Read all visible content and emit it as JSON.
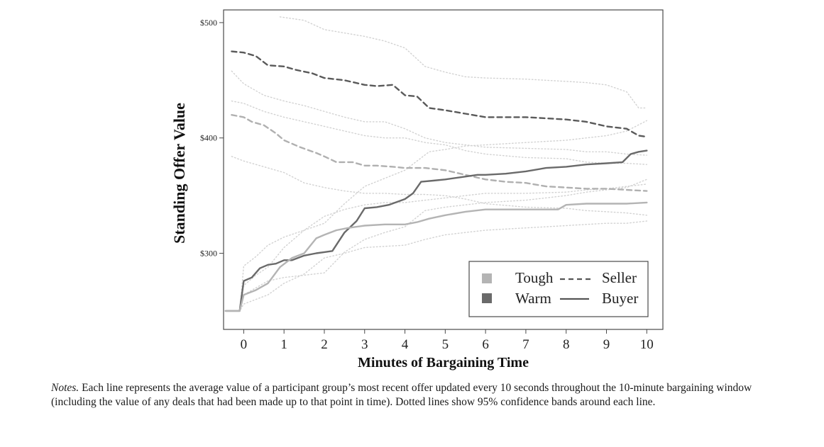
{
  "chart_data": {
    "type": "line",
    "xlabel": "Minutes of Bargaining Time",
    "ylabel": "Standing Offer Value",
    "xlim": [
      -0.5,
      10.4
    ],
    "ylim": [
      234,
      511
    ],
    "x_ticks": [
      0,
      1,
      2,
      3,
      4,
      5,
      6,
      7,
      8,
      9,
      10
    ],
    "x_tick_labels": [
      "0",
      "1",
      "2",
      "3",
      "4",
      "5",
      "6",
      "7",
      "8",
      "9",
      "10"
    ],
    "y_ticks": [
      300,
      400,
      500
    ],
    "y_tick_labels": [
      "$300",
      "$400",
      "$500"
    ],
    "legend": {
      "position": "bottom-right",
      "group_labels": [
        "Tough",
        "Warm"
      ],
      "role_labels": [
        "Seller",
        "Buyer"
      ]
    },
    "series": [
      {
        "name": "Warm Seller",
        "group": "Warm",
        "role": "Seller",
        "color": "#5a5a5a",
        "style": "dashed",
        "x": [
          -0.3,
          0,
          0.3,
          0.6,
          1,
          1.3,
          1.7,
          2,
          2.5,
          3,
          3.3,
          3.7,
          4,
          4.3,
          4.6,
          5,
          5.5,
          6,
          7,
          7.5,
          8,
          8.5,
          9,
          9.5,
          9.8,
          10
        ],
        "y": [
          475,
          474,
          471,
          463,
          462,
          459,
          456,
          452,
          450,
          446,
          445,
          446,
          437,
          436,
          426,
          424,
          421,
          418,
          418,
          417,
          416,
          414,
          410,
          408,
          402,
          401
        ]
      },
      {
        "name": "Tough Seller",
        "group": "Tough",
        "role": "Seller",
        "color": "#b0b0b0",
        "style": "dashed",
        "x": [
          -0.3,
          0,
          0.2,
          0.5,
          0.8,
          1,
          1.4,
          1.8,
          2,
          2.3,
          2.7,
          3,
          3.3,
          3.7,
          4,
          4.5,
          5,
          5.5,
          6,
          6.5,
          7,
          7.5,
          8,
          8.5,
          9,
          9.5,
          10
        ],
        "y": [
          420,
          418,
          414,
          411,
          404,
          398,
          392,
          387,
          384,
          379,
          379,
          376,
          376,
          375,
          374,
          374,
          372,
          368,
          364,
          362,
          361,
          358,
          357,
          356,
          356,
          355,
          354
        ]
      },
      {
        "name": "Warm Buyer",
        "group": "Warm",
        "role": "Buyer",
        "color": "#6a6a6a",
        "style": "solid",
        "x": [
          -0.45,
          -0.1,
          0,
          0.2,
          0.4,
          0.6,
          0.8,
          1,
          1.2,
          1.5,
          1.8,
          2,
          2.2,
          2.5,
          2.8,
          3,
          3.3,
          3.6,
          4,
          4.2,
          4.4,
          4.7,
          5,
          5.4,
          5.8,
          6,
          6.5,
          7,
          7.5,
          8,
          8.5,
          9,
          9.4,
          9.6,
          9.8,
          10
        ],
        "y": [
          250,
          250,
          276,
          279,
          287,
          290,
          291,
          294,
          294,
          298,
          300,
          301,
          302,
          318,
          328,
          339,
          340,
          342,
          347,
          352,
          362,
          363,
          364,
          366,
          368,
          368,
          369,
          371,
          374,
          375,
          377,
          378,
          379,
          386,
          388,
          389
        ]
      },
      {
        "name": "Tough Buyer",
        "group": "Tough",
        "role": "Buyer",
        "color": "#b4b4b4",
        "style": "solid",
        "x": [
          -0.45,
          -0.1,
          0,
          0.3,
          0.6,
          0.9,
          1.2,
          1.5,
          1.8,
          2,
          2.3,
          2.6,
          3,
          3.5,
          4,
          4.3,
          4.6,
          5,
          5.5,
          6,
          6.5,
          7,
          7.5,
          7.8,
          8,
          8.5,
          9,
          9.5,
          10
        ],
        "y": [
          250,
          250,
          264,
          268,
          274,
          288,
          296,
          300,
          313,
          316,
          320,
          322,
          324,
          325,
          325,
          327,
          330,
          333,
          336,
          338,
          338,
          338,
          338,
          338,
          342,
          343,
          343,
          343,
          344
        ]
      },
      {
        "name": "Warm Seller upper 95% CI",
        "group": "Warm",
        "role": "Seller",
        "color": "#d2d2d2",
        "style": "dotted",
        "x": [
          0.9,
          1.5,
          2,
          2.5,
          3,
          3.5,
          4,
          4.5,
          5,
          5.5,
          6,
          7,
          8,
          8.5,
          9,
          9.5,
          9.8,
          10
        ],
        "y": [
          505,
          502,
          494,
          491,
          488,
          484,
          478,
          462,
          457,
          453,
          452,
          451,
          449,
          448,
          446,
          440,
          426,
          426
        ]
      },
      {
        "name": "Warm Seller lower 95% CI",
        "group": "Warm",
        "role": "Seller",
        "color": "#d2d2d2",
        "style": "dotted",
        "x": [
          -0.3,
          0,
          0.5,
          1,
          1.5,
          2,
          2.5,
          3,
          3.5,
          4,
          4.5,
          5,
          5.5,
          6,
          7,
          8,
          8.5,
          9,
          9.5,
          10
        ],
        "y": [
          458,
          447,
          437,
          432,
          428,
          423,
          418,
          414,
          414,
          408,
          400,
          396,
          394,
          392,
          391,
          390,
          388,
          388,
          386,
          385
        ]
      },
      {
        "name": "Tough Seller upper 95% CI",
        "group": "Tough",
        "role": "Seller",
        "color": "#d2d2d2",
        "style": "dotted",
        "x": [
          -0.3,
          0,
          0.5,
          1,
          1.5,
          2,
          2.5,
          3,
          3.5,
          4,
          4.5,
          5,
          5.5,
          6,
          7,
          8,
          8.5,
          9,
          9.5,
          10
        ],
        "y": [
          432,
          430,
          423,
          418,
          414,
          410,
          406,
          402,
          400,
          400,
          396,
          394,
          389,
          386,
          383,
          382,
          379,
          378,
          378,
          377
        ]
      },
      {
        "name": "Tough Seller lower 95% CI",
        "group": "Tough",
        "role": "Seller",
        "color": "#d2d2d2",
        "style": "dotted",
        "x": [
          -0.3,
          0,
          0.5,
          1,
          1.5,
          2,
          2.5,
          3,
          3.5,
          4,
          4.5,
          5,
          5.5,
          6,
          7,
          8,
          8.5,
          9,
          9.5,
          10
        ],
        "y": [
          384,
          380,
          375,
          370,
          361,
          357,
          354,
          352,
          352,
          351,
          351,
          350,
          347,
          343,
          340,
          339,
          337,
          336,
          335,
          333
        ]
      },
      {
        "name": "Warm Buyer upper 95% CI",
        "group": "Warm",
        "role": "Buyer",
        "color": "#d2d2d2",
        "style": "dotted",
        "x": [
          -0.45,
          -0.1,
          0,
          0.3,
          0.6,
          1,
          1.5,
          2,
          2.5,
          3,
          3.5,
          4,
          4.3,
          4.6,
          5,
          5.5,
          6,
          7,
          8,
          8.5,
          9,
          9.5,
          10
        ],
        "y": [
          250,
          250,
          289,
          297,
          307,
          314,
          320,
          326,
          343,
          358,
          365,
          372,
          380,
          388,
          390,
          393,
          394,
          396,
          398,
          400,
          402,
          406,
          415
        ]
      },
      {
        "name": "Warm Buyer lower 95% CI",
        "group": "Warm",
        "role": "Buyer",
        "color": "#d2d2d2",
        "style": "dotted",
        "x": [
          -0.45,
          -0.1,
          0,
          0.3,
          0.6,
          1,
          1.5,
          2,
          2.5,
          3,
          3.5,
          4,
          4.5,
          5,
          5.5,
          6,
          7,
          8,
          8.5,
          9,
          9.5,
          10
        ],
        "y": [
          250,
          250,
          264,
          270,
          276,
          279,
          281,
          283,
          301,
          312,
          318,
          323,
          337,
          340,
          342,
          344,
          346,
          350,
          353,
          355,
          357,
          364
        ]
      },
      {
        "name": "Tough Buyer upper 95% CI",
        "group": "Tough",
        "role": "Buyer",
        "color": "#d2d2d2",
        "style": "dotted",
        "x": [
          -0.45,
          -0.1,
          0,
          0.3,
          0.6,
          1,
          1.5,
          2,
          2.5,
          3,
          3.5,
          4,
          4.5,
          5,
          5.5,
          6,
          7,
          8,
          8.5,
          9,
          9.5,
          10
        ],
        "y": [
          250,
          250,
          272,
          281,
          288,
          305,
          320,
          332,
          338,
          342,
          344,
          344,
          346,
          348,
          350,
          352,
          352,
          353,
          355,
          356,
          358,
          360
        ]
      },
      {
        "name": "Tough Buyer lower 95% CI",
        "group": "Tough",
        "role": "Buyer",
        "color": "#d2d2d2",
        "style": "dotted",
        "x": [
          -0.45,
          -0.1,
          0,
          0.3,
          0.6,
          1,
          1.5,
          2,
          2.5,
          3,
          3.5,
          4,
          4.5,
          5,
          5.5,
          6,
          7,
          8,
          8.5,
          9,
          9.5,
          10
        ],
        "y": [
          250,
          250,
          256,
          260,
          264,
          274,
          282,
          296,
          300,
          305,
          306,
          307,
          312,
          316,
          318,
          320,
          322,
          324,
          325,
          326,
          326,
          328
        ]
      }
    ]
  },
  "notes": {
    "lead": "Notes.",
    "text": "Each line represents the average value of a participant group’s most recent offer updated every 10 seconds throughout the 10-minute bargaining window (including the value of any deals that had been made up to that point in time). Dotted lines show 95% confidence bands around each line."
  }
}
